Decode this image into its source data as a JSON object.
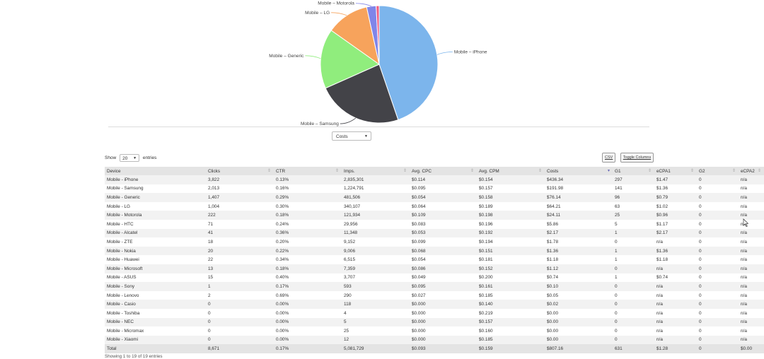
{
  "chart_data": {
    "type": "pie",
    "slices": [
      {
        "label": "Mobile – iPhone",
        "value": 3822,
        "color": "#7cb5ec"
      },
      {
        "label": "Mobile – Samsung",
        "value": 2013,
        "color": "#434348"
      },
      {
        "label": "Mobile – Generic",
        "value": 1407,
        "color": "#90ed7d"
      },
      {
        "label": "Mobile – LG",
        "value": 1004,
        "color": "#f7a35c"
      },
      {
        "label": "Mobile – Motorola",
        "value": 222,
        "color": "#8085e9"
      },
      {
        "label": "",
        "value": 71,
        "color": "#f15c80"
      }
    ]
  },
  "controls": {
    "metric": "Costs",
    "show_label": "Show",
    "entries_value": "20",
    "entries_label": "entries",
    "csv_label": "CSV",
    "toggle_label": "Toggle Columns"
  },
  "table": {
    "columns": [
      "Device",
      "Clicks",
      "CTR",
      "Imps.",
      "Avg. CPC",
      "Avg. CPM",
      "Costs",
      "G1",
      "eCPA1",
      "G2",
      "eCPA2"
    ],
    "rows": [
      [
        "Mobile - iPhone",
        "3,822",
        "0.13%",
        "2,835,301",
        "$0.114",
        "$0.154",
        "$436.34",
        "297",
        "$1.47",
        "0",
        "n/a"
      ],
      [
        "Mobile - Samsung",
        "2,013",
        "0.16%",
        "1,224,791",
        "$0.095",
        "$0.157",
        "$191.98",
        "141",
        "$1.36",
        "0",
        "n/a"
      ],
      [
        "Mobile - Generic",
        "1,407",
        "0.29%",
        "481,506",
        "$0.054",
        "$0.158",
        "$76.14",
        "96",
        "$0.79",
        "0",
        "n/a"
      ],
      [
        "Mobile - LG",
        "1,004",
        "0.30%",
        "340,107",
        "$0.064",
        "$0.189",
        "$64.21",
        "63",
        "$1.02",
        "0",
        "n/a"
      ],
      [
        "Mobile - Motorola",
        "222",
        "0.18%",
        "121,934",
        "$0.109",
        "$0.198",
        "$24.11",
        "25",
        "$0.96",
        "0",
        "n/a"
      ],
      [
        "Mobile - HTC",
        "71",
        "0.24%",
        "29,956",
        "$0.083",
        "$0.196",
        "$5.86",
        "5",
        "$1.17",
        "0",
        "n/a"
      ],
      [
        "Mobile - Alcatel",
        "41",
        "0.36%",
        "11,348",
        "$0.053",
        "$0.192",
        "$2.17",
        "1",
        "$2.17",
        "0",
        "n/a"
      ],
      [
        "Mobile - ZTE",
        "18",
        "0.20%",
        "9,152",
        "$0.099",
        "$0.194",
        "$1.78",
        "0",
        "n/a",
        "0",
        "n/a"
      ],
      [
        "Mobile - Nokia",
        "20",
        "0.22%",
        "9,006",
        "$0.068",
        "$0.151",
        "$1.36",
        "1",
        "$1.36",
        "0",
        "n/a"
      ],
      [
        "Mobile - Huawei",
        "22",
        "0.34%",
        "6,515",
        "$0.054",
        "$0.181",
        "$1.18",
        "1",
        "$1.18",
        "0",
        "n/a"
      ],
      [
        "Mobile - Microsoft",
        "13",
        "0.18%",
        "7,359",
        "$0.086",
        "$0.152",
        "$1.12",
        "0",
        "n/a",
        "0",
        "n/a"
      ],
      [
        "Mobile - ASUS",
        "15",
        "0.40%",
        "3,707",
        "$0.049",
        "$0.200",
        "$0.74",
        "1",
        "$0.74",
        "0",
        "n/a"
      ],
      [
        "Mobile - Sony",
        "1",
        "0.17%",
        "593",
        "$0.095",
        "$0.161",
        "$0.10",
        "0",
        "n/a",
        "0",
        "n/a"
      ],
      [
        "Mobile - Lenovo",
        "2",
        "0.69%",
        "290",
        "$0.027",
        "$0.185",
        "$0.05",
        "0",
        "n/a",
        "0",
        "n/a"
      ],
      [
        "Mobile - Casio",
        "0",
        "0.00%",
        "118",
        "$0.000",
        "$0.140",
        "$0.02",
        "0",
        "n/a",
        "0",
        "n/a"
      ],
      [
        "Mobile - Toshiba",
        "0",
        "0.00%",
        "4",
        "$0.000",
        "$0.219",
        "$0.00",
        "0",
        "n/a",
        "0",
        "n/a"
      ],
      [
        "Mobile - NEC",
        "0",
        "0.00%",
        "5",
        "$0.000",
        "$0.157",
        "$0.00",
        "0",
        "n/a",
        "0",
        "n/a"
      ],
      [
        "Mobile - Micromax",
        "0",
        "0.00%",
        "25",
        "$0.000",
        "$0.160",
        "$0.00",
        "0",
        "n/a",
        "0",
        "n/a"
      ],
      [
        "Mobile - Xiaomi",
        "0",
        "0.00%",
        "12",
        "$0.000",
        "$0.185",
        "$0.00",
        "0",
        "n/a",
        "0",
        "n/a"
      ]
    ],
    "totals": [
      "Total",
      "8,671",
      "0.17%",
      "5,081,729",
      "$0.093",
      "$0.159",
      "$807.16",
      "631",
      "$1.28",
      "0",
      "$0.00"
    ],
    "sorted_column": "Costs",
    "info": "Showing 1 to 19 of 19 entries"
  }
}
